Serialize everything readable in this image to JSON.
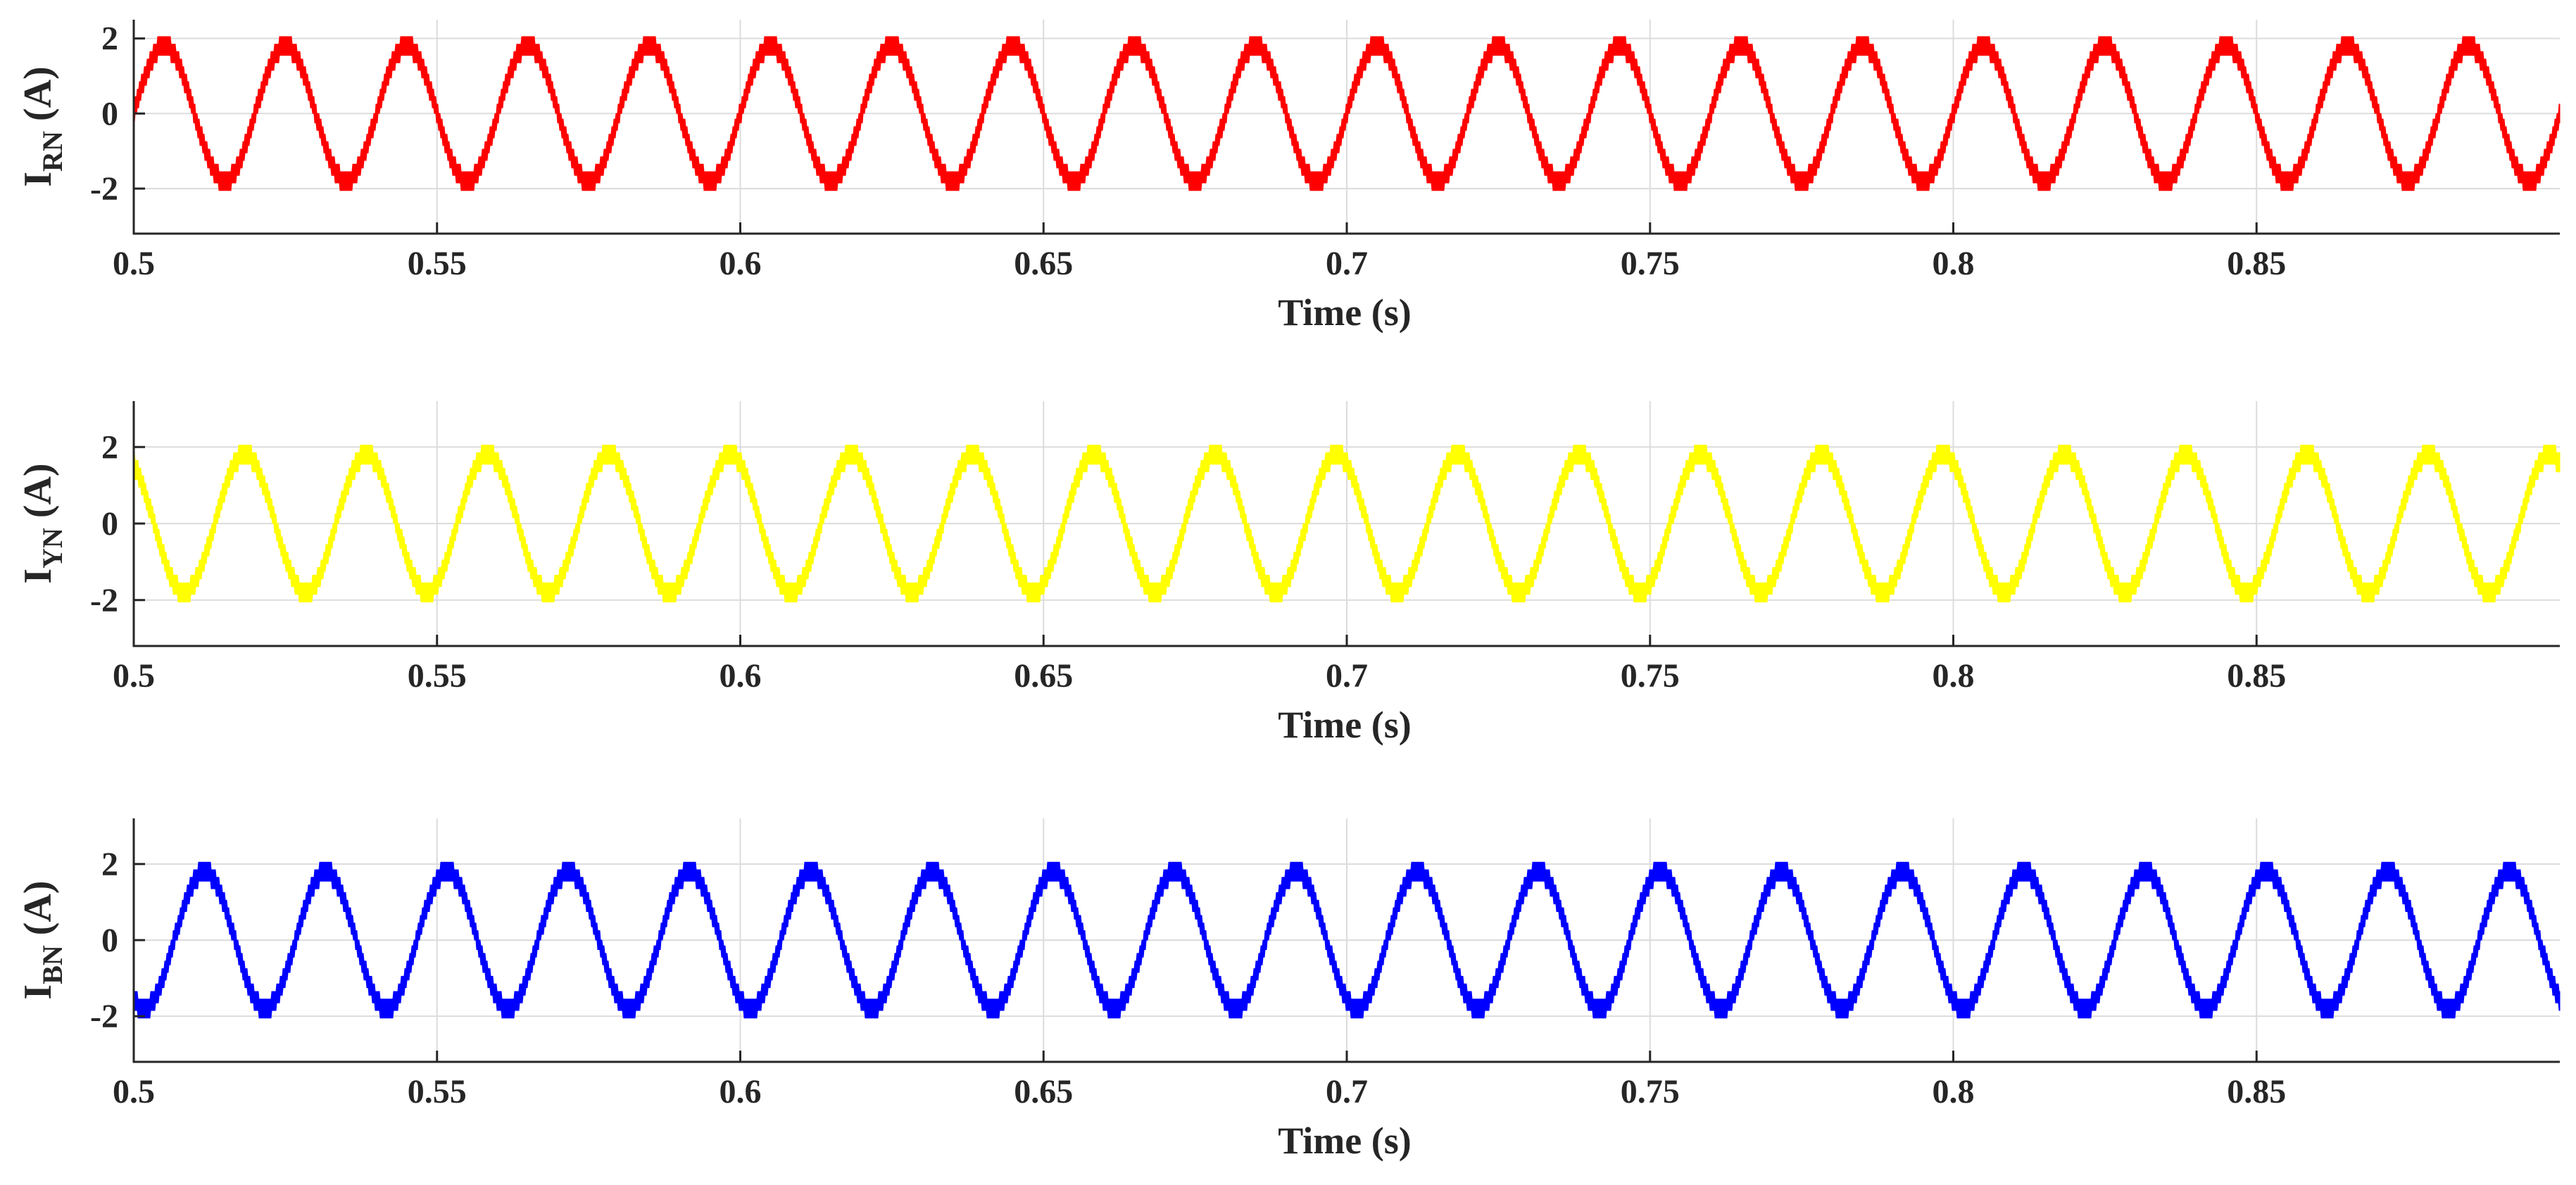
{
  "chart_data": [
    {
      "type": "line",
      "ylabel_main": "I",
      "ylabel_sub": "RN",
      "ylabel_unit": " (A)",
      "xlabel": "Time (s)",
      "xlim": [
        0.5,
        0.9
      ],
      "ylim": [
        -3.2,
        2.5
      ],
      "xticks": [
        0.5,
        0.55,
        0.6,
        0.65,
        0.7,
        0.75,
        0.8,
        0.85
      ],
      "xtick_labels": [
        "0.5",
        "0.55",
        "0.6",
        "0.65",
        "0.7",
        "0.75",
        "0.8",
        "0.85"
      ],
      "yticks": [
        -2,
        0,
        2
      ],
      "ytick_labels": [
        "-2",
        "0",
        "2"
      ],
      "grid": true,
      "series": [
        {
          "color": "#ff0000",
          "frequency_hz": 50,
          "amplitude": 1.8,
          "phase_deg": 0,
          "steps": 9,
          "ripple": 0.5
        }
      ]
    },
    {
      "type": "line",
      "ylabel_main": "I",
      "ylabel_sub": "YN",
      "ylabel_unit": " (A)",
      "xlabel": "Time (s)",
      "xlim": [
        0.5,
        0.9
      ],
      "ylim": [
        -3.2,
        3.2
      ],
      "xticks": [
        0.5,
        0.55,
        0.6,
        0.65,
        0.7,
        0.75,
        0.8,
        0.85
      ],
      "xtick_labels": [
        "0.5",
        "0.55",
        "0.6",
        "0.65",
        "0.7",
        "0.75",
        "0.8",
        "0.85"
      ],
      "yticks": [
        -2,
        0,
        2
      ],
      "ytick_labels": [
        "-2",
        "0",
        "2"
      ],
      "grid": true,
      "series": [
        {
          "color": "#ffff00",
          "frequency_hz": 50,
          "amplitude": 1.8,
          "phase_deg": 120,
          "steps": 9,
          "ripple": 0.5
        }
      ]
    },
    {
      "type": "line",
      "ylabel_main": "I",
      "ylabel_sub": "BN",
      "ylabel_unit": " (A)",
      "xlabel": "Time (s)",
      "xlim": [
        0.5,
        0.9
      ],
      "ylim": [
        -3.2,
        3.2
      ],
      "xticks": [
        0.5,
        0.55,
        0.6,
        0.65,
        0.7,
        0.75,
        0.8,
        0.85
      ],
      "xtick_labels": [
        "0.5",
        "0.55",
        "0.6",
        "0.65",
        "0.7",
        "0.75",
        "0.8",
        "0.85"
      ],
      "yticks": [
        -2,
        0,
        2
      ],
      "ytick_labels": [
        "-2",
        "0",
        "2"
      ],
      "grid": true,
      "series": [
        {
          "color": "#0000ff",
          "frequency_hz": 50,
          "amplitude": 1.8,
          "phase_deg": -120,
          "steps": 9,
          "ripple": 0.5
        }
      ]
    }
  ]
}
